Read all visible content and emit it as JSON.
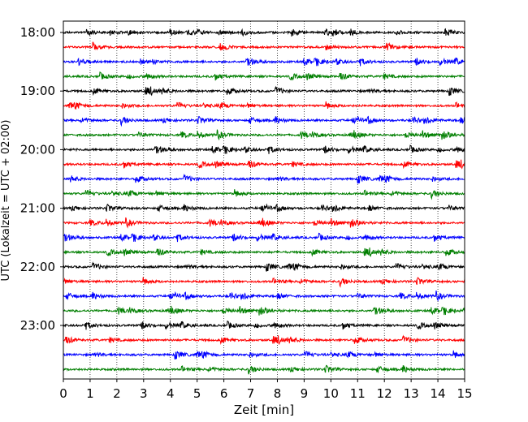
{
  "chart_data": {
    "type": "line",
    "title": "",
    "xlabel": "Zeit  [min]",
    "ylabel": "UTC (Lokalzeit = UTC + 02:00)",
    "xlim": [
      0,
      15
    ],
    "x_ticks": [
      "0",
      "1",
      "2",
      "3",
      "4",
      "5",
      "6",
      "7",
      "8",
      "9",
      "10",
      "11",
      "12",
      "13",
      "14",
      "15"
    ],
    "y_ticks": [
      "18:00",
      "19:00",
      "20:00",
      "21:00",
      "22:00",
      "23:00"
    ],
    "trace_start_times": [
      "18:00",
      "18:15",
      "18:30",
      "18:45",
      "19:00",
      "19:15",
      "19:30",
      "19:45",
      "20:00",
      "20:15",
      "20:30",
      "20:45",
      "21:00",
      "21:15",
      "21:30",
      "21:45",
      "22:00",
      "22:15",
      "22:30",
      "22:45",
      "23:00",
      "23:15",
      "23:30",
      "23:45"
    ],
    "trace_colors": [
      "#000000",
      "#ff0000",
      "#0000ff",
      "#007f00"
    ],
    "grid": "vertical dotted at each minute",
    "legend": "none"
  }
}
